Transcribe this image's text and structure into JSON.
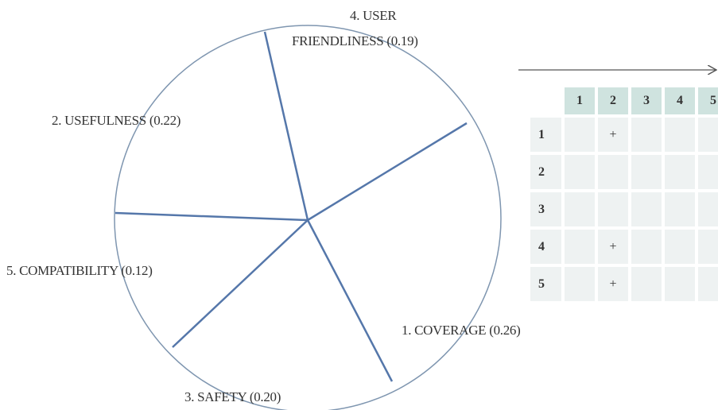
{
  "wheel": {
    "labels": [
      {
        "text": "4. USER",
        "text2": "FRIENDLINESS (0.19)"
      },
      {
        "text": "2. USEFULNESS (0.22)"
      },
      {
        "text": "5. COMPATIBILITY (0.12)"
      },
      {
        "text": "1. COVERAGE (0.26)"
      },
      {
        "text": "3. SAFETY (0.20)"
      }
    ]
  },
  "table": {
    "header": [
      "1",
      "2",
      "3",
      "4",
      "5"
    ],
    "rows": [
      {
        "label": "1",
        "cells": {
          "2": "+"
        }
      },
      {
        "label": "2",
        "cells": {}
      },
      {
        "label": "3",
        "cells": {}
      },
      {
        "label": "4",
        "cells": {
          "2": "+"
        }
      },
      {
        "label": "5",
        "cells": {
          "2": "+"
        }
      }
    ]
  }
}
